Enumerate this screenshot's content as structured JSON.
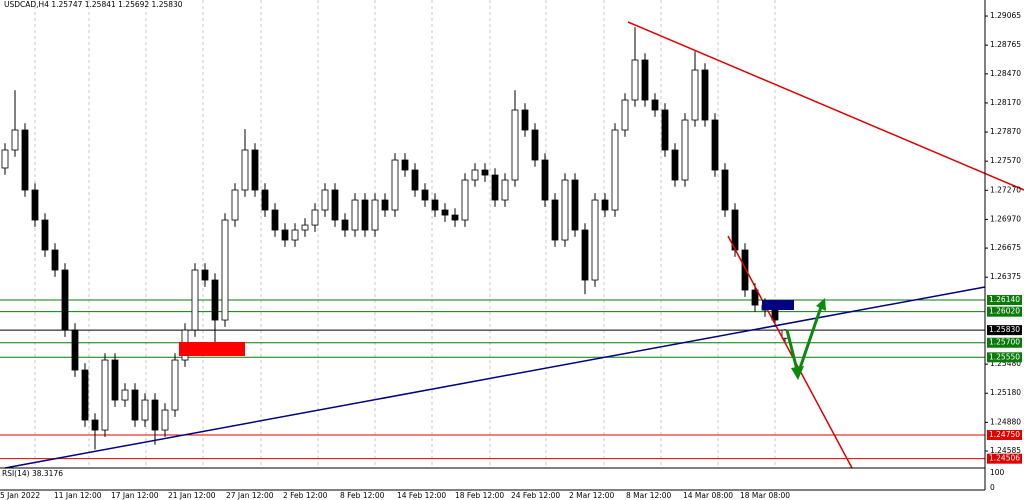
{
  "chart_data": {
    "type": "candlestick",
    "title": "USDCAD,H4  1.25747 1.25841 1.25692 1.25830",
    "open": [
      1.275,
      1.27685,
      1.27891,
      1.27273,
      1.26964,
      1.26655,
      1.26449,
      1.25831,
      1.25419,
      1.24904,
      1.24801,
      1.25522,
      1.2511,
      1.25213,
      1.24904,
      1.2511,
      1.24801,
      1.25007,
      1.25522,
      1.25831,
      1.26449,
      1.26346,
      1.25934,
      1.26964,
      1.27273,
      1.27685,
      1.27273,
      1.27067,
      1.26861,
      1.26758,
      1.26861,
      1.26912,
      1.27067,
      1.27273,
      1.26964,
      1.26861,
      1.2717,
      1.26861,
      1.2717,
      1.27067,
      1.27582,
      1.27479,
      1.27273,
      1.2717,
      1.27067,
      1.27015,
      1.26964,
      1.27376,
      1.27479,
      1.27427,
      1.2717,
      1.27376,
      1.28097,
      1.27891,
      1.27582,
      1.2717,
      1.26758,
      1.27376,
      1.26861,
      1.26346,
      1.2717,
      1.27067,
      1.27891,
      1.282,
      1.28612,
      1.282,
      1.28097,
      1.27685,
      1.27376,
      1.27994,
      1.28509,
      1.27994,
      1.27479,
      1.27067,
      1.26655,
      1.26243,
      1.26088,
      1.26037,
      1.25747
    ],
    "high": [
      1.27755,
      1.283,
      1.27961,
      1.27343,
      1.27034,
      1.26725,
      1.26519,
      1.25901,
      1.25489,
      1.24974,
      1.25592,
      1.25592,
      1.25283,
      1.25283,
      1.2518,
      1.2518,
      1.25077,
      1.25592,
      1.25901,
      1.26519,
      1.26519,
      1.26416,
      1.27034,
      1.27343,
      1.279,
      1.27755,
      1.27343,
      1.27137,
      1.26931,
      1.26931,
      1.26982,
      1.27137,
      1.27343,
      1.27343,
      1.27034,
      1.2724,
      1.2724,
      1.2724,
      1.2724,
      1.27652,
      1.27652,
      1.27549,
      1.27343,
      1.2724,
      1.27137,
      1.27085,
      1.27446,
      1.27549,
      1.27549,
      1.27497,
      1.27446,
      1.283,
      1.28167,
      1.27961,
      1.27652,
      1.2724,
      1.27446,
      1.27446,
      1.26931,
      1.2724,
      1.2724,
      1.27961,
      1.2827,
      1.2895,
      1.28682,
      1.2827,
      1.28167,
      1.27755,
      1.28064,
      1.287,
      1.28579,
      1.28064,
      1.27549,
      1.27137,
      1.26725,
      1.26313,
      1.26158,
      1.26107,
      1.25841
    ],
    "low": [
      1.2743,
      1.27615,
      1.27203,
      1.26894,
      1.26585,
      1.26379,
      1.25761,
      1.25349,
      1.24834,
      1.246,
      1.24731,
      1.2504,
      1.2504,
      1.24834,
      1.24834,
      1.2465,
      1.24731,
      1.24937,
      1.25452,
      1.25761,
      1.26276,
      1.2565,
      1.25864,
      1.26894,
      1.27203,
      1.27203,
      1.26997,
      1.26791,
      1.26688,
      1.26688,
      1.26791,
      1.26842,
      1.26997,
      1.26894,
      1.26791,
      1.26791,
      1.26791,
      1.26791,
      1.26997,
      1.26997,
      1.27409,
      1.27203,
      1.271,
      1.26997,
      1.26945,
      1.26894,
      1.26894,
      1.27306,
      1.27357,
      1.271,
      1.271,
      1.27306,
      1.27821,
      1.27512,
      1.271,
      1.26688,
      1.26688,
      1.26791,
      1.262,
      1.26276,
      1.26997,
      1.26997,
      1.27821,
      1.2813,
      1.2813,
      1.28027,
      1.27615,
      1.27306,
      1.27306,
      1.27924,
      1.27924,
      1.27409,
      1.26997,
      1.26585,
      1.26173,
      1.26018,
      1.25967,
      1.25864,
      1.25692
    ],
    "close": [
      1.27685,
      1.27891,
      1.27273,
      1.26964,
      1.26655,
      1.26449,
      1.25831,
      1.25419,
      1.24904,
      1.24801,
      1.25522,
      1.2511,
      1.25213,
      1.24904,
      1.2511,
      1.24801,
      1.25007,
      1.25522,
      1.25831,
      1.26449,
      1.26346,
      1.25934,
      1.26964,
      1.27273,
      1.27685,
      1.27273,
      1.27067,
      1.26861,
      1.26758,
      1.26861,
      1.26912,
      1.27067,
      1.27273,
      1.26964,
      1.26861,
      1.2717,
      1.26861,
      1.2717,
      1.27067,
      1.27582,
      1.27479,
      1.27273,
      1.2717,
      1.27067,
      1.27015,
      1.26964,
      1.27376,
      1.27479,
      1.27427,
      1.2717,
      1.27376,
      1.28097,
      1.27891,
      1.27582,
      1.2717,
      1.26758,
      1.27376,
      1.26861,
      1.26346,
      1.2717,
      1.27067,
      1.27891,
      1.282,
      1.28612,
      1.282,
      1.28097,
      1.27685,
      1.27376,
      1.27994,
      1.28509,
      1.27994,
      1.27479,
      1.27067,
      1.26655,
      1.26243,
      1.26088,
      1.26037,
      1.25934,
      1.2583
    ],
    "up_color": "#ffffff",
    "down_color": "#000000",
    "edge_color": "#000000",
    "ylim": [
      1.2441,
      1.2923
    ],
    "yticks": [
      {
        "value": 1.29065,
        "label": "1.29065"
      },
      {
        "value": 1.28765,
        "label": "1.28765"
      },
      {
        "value": 1.2847,
        "label": "1.28470"
      },
      {
        "value": 1.2817,
        "label": "1.28170"
      },
      {
        "value": 1.2787,
        "label": "1.27870"
      },
      {
        "value": 1.2757,
        "label": "1.27570"
      },
      {
        "value": 1.2727,
        "label": "1.27270"
      },
      {
        "value": 1.2697,
        "label": "1.26970"
      },
      {
        "value": 1.26675,
        "label": "1.26675"
      },
      {
        "value": 1.26375,
        "label": "1.26375"
      },
      {
        "value": 1.2548,
        "label": "1.25480"
      },
      {
        "value": 1.2518,
        "label": "1.25180"
      },
      {
        "value": 1.2488,
        "label": "1.24880"
      },
      {
        "value": 1.24585,
        "label": "1.24585"
      }
    ],
    "levels": [
      {
        "value": 1.2614,
        "label": "1.26140",
        "color": "#0a7a0a"
      },
      {
        "value": 1.2602,
        "label": "1.26020",
        "color": "#0a7a0a"
      },
      {
        "value": 1.2583,
        "label": "1.25830",
        "color": "#000000"
      },
      {
        "value": 1.257,
        "label": "1.25700",
        "color": "#0a7a0a"
      },
      {
        "value": 1.2555,
        "label": "1.25550",
        "color": "#0a7a0a"
      },
      {
        "value": 1.2475,
        "label": "1.24750",
        "color": "#e00000"
      },
      {
        "value": 1.24506,
        "label": "1.24506",
        "color": "#e00000"
      }
    ],
    "xlim": [
      0,
      98.5
    ],
    "xticks": [
      {
        "value": 0,
        "label": "5 Jan 2022"
      },
      {
        "value": 5.4,
        "label": "11 Jan 12:00"
      },
      {
        "value": 11.1,
        "label": "17 Jan 12:00"
      },
      {
        "value": 16.8,
        "label": "21 Jan 12:00"
      },
      {
        "value": 22.6,
        "label": "27 Jan 12:00"
      },
      {
        "value": 28.3,
        "label": "2 Feb 12:00"
      },
      {
        "value": 34,
        "label": "8 Feb 12:00"
      },
      {
        "value": 39.7,
        "label": "14 Feb 12:00"
      },
      {
        "value": 45.5,
        "label": "18 Feb 12:00"
      },
      {
        "value": 51.1,
        "label": "24 Feb 12:00"
      },
      {
        "value": 56.9,
        "label": "2 Mar 12:00"
      },
      {
        "value": 62.6,
        "label": "8 Mar 12:00"
      },
      {
        "value": 68.3,
        "label": "14 Mar 08:00"
      },
      {
        "value": 74,
        "label": "18 Mar 08:00"
      }
    ],
    "grid": true,
    "rsi_label": "RSI(14) 38.3176",
    "rsi_ylim": [
      0,
      100
    ],
    "rsi_yticks": [
      0,
      100
    ]
  }
}
